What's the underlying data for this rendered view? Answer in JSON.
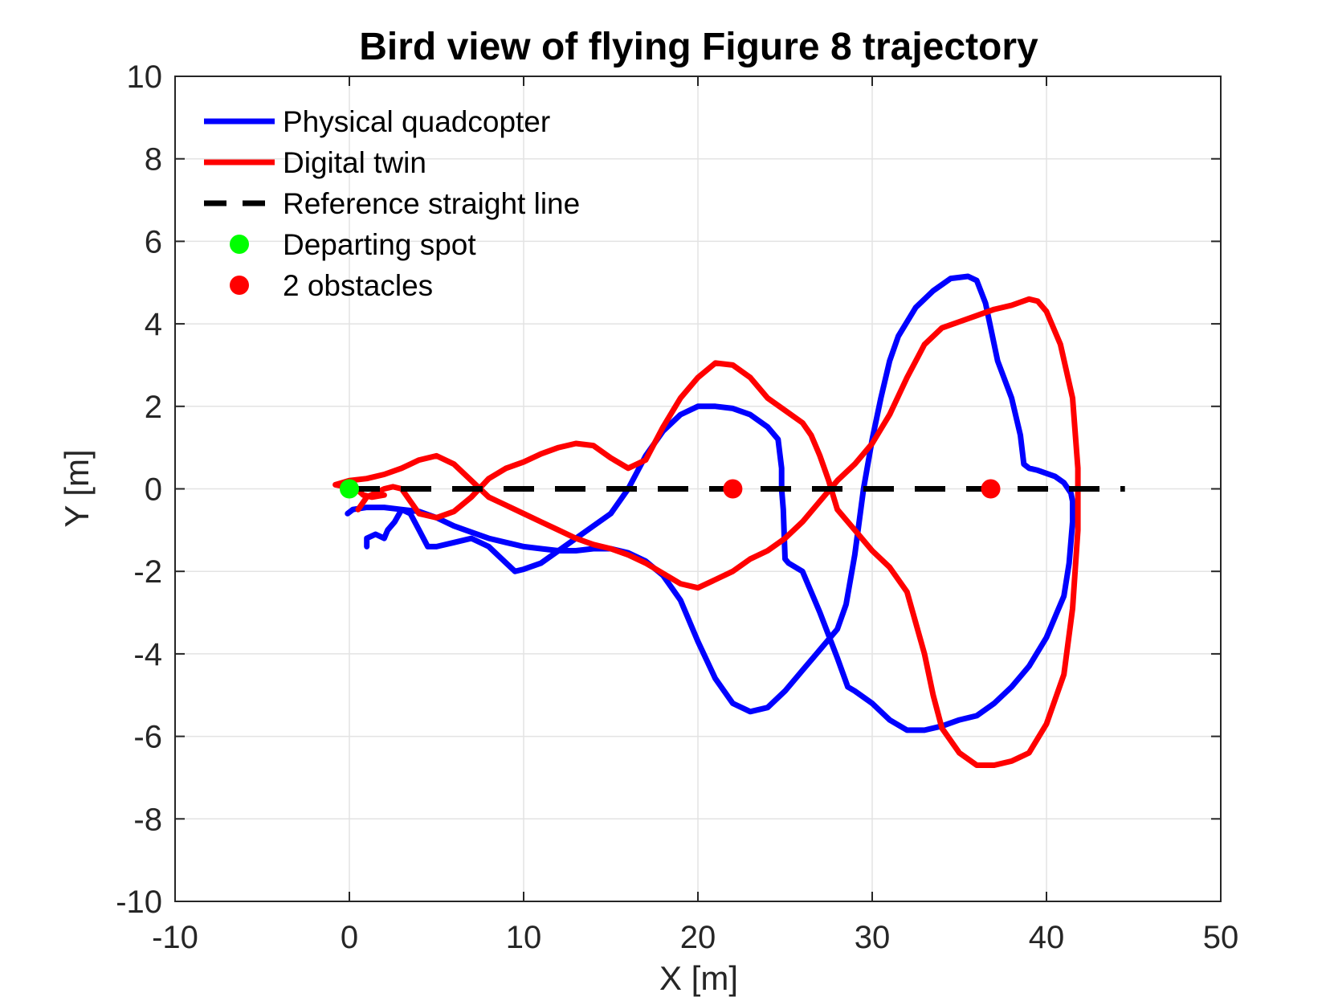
{
  "chart_data": {
    "type": "line",
    "title": "Bird view of flying Figure 8 trajectory",
    "xlabel": "X [m]",
    "ylabel": "Y [m]",
    "xlim": [
      -10,
      50
    ],
    "ylim": [
      -10,
      10
    ],
    "xticks": [
      -10,
      0,
      10,
      20,
      30,
      40,
      50
    ],
    "yticks": [
      -10,
      -8,
      -6,
      -4,
      -2,
      0,
      2,
      4,
      6,
      8,
      10
    ],
    "xtick_labels": [
      "-10",
      "0",
      "10",
      "20",
      "30",
      "40",
      "50"
    ],
    "ytick_labels": [
      "-10",
      "-8",
      "-6",
      "-4",
      "-2",
      "0",
      "2",
      "4",
      "6",
      "8",
      "10"
    ],
    "grid": true,
    "legend_position": "top-left",
    "series": [
      {
        "name": "Physical quadcopter",
        "color": "#0000ff",
        "style": "solid",
        "points": [
          [
            -0.1,
            -0.6
          ],
          [
            0.2,
            -0.5
          ],
          [
            1,
            -0.45
          ],
          [
            2,
            -0.45
          ],
          [
            3,
            -0.5
          ],
          [
            4,
            -0.55
          ],
          [
            5,
            -0.7
          ],
          [
            6,
            -0.9
          ],
          [
            7,
            -1.05
          ],
          [
            8,
            -1.2
          ],
          [
            9,
            -1.3
          ],
          [
            10,
            -1.4
          ],
          [
            11,
            -1.45
          ],
          [
            12,
            -1.5
          ],
          [
            13,
            -1.5
          ],
          [
            14,
            -1.45
          ],
          [
            15,
            -1.45
          ],
          [
            16,
            -1.55
          ],
          [
            17,
            -1.75
          ],
          [
            18,
            -2.1
          ],
          [
            19,
            -2.7
          ],
          [
            20,
            -3.7
          ],
          [
            21,
            -4.6
          ],
          [
            22,
            -5.2
          ],
          [
            23,
            -5.4
          ],
          [
            24,
            -5.3
          ],
          [
            25,
            -4.9
          ],
          [
            26,
            -4.4
          ],
          [
            27,
            -3.9
          ],
          [
            28,
            -3.4
          ],
          [
            28.5,
            -2.8
          ],
          [
            29,
            -1.6
          ],
          [
            29.5,
            0.0
          ],
          [
            30,
            1.2
          ],
          [
            30.5,
            2.2
          ],
          [
            31,
            3.1
          ],
          [
            31.5,
            3.7
          ],
          [
            32.5,
            4.4
          ],
          [
            33.5,
            4.8
          ],
          [
            34.5,
            5.1
          ],
          [
            35.5,
            5.15
          ],
          [
            36,
            5.05
          ],
          [
            36.5,
            4.5
          ],
          [
            37.2,
            3.1
          ],
          [
            38,
            2.2
          ],
          [
            38.5,
            1.3
          ],
          [
            38.7,
            0.6
          ],
          [
            39,
            0.5
          ],
          [
            39.5,
            0.45
          ],
          [
            40.5,
            0.3
          ],
          [
            41,
            0.15
          ],
          [
            41.4,
            -0.1
          ],
          [
            41.5,
            -0.3
          ],
          [
            41.5,
            -0.8
          ],
          [
            41.3,
            -1.8
          ],
          [
            41,
            -2.6
          ],
          [
            40.5,
            -3.1
          ],
          [
            40,
            -3.6
          ],
          [
            39,
            -4.3
          ],
          [
            38,
            -4.8
          ],
          [
            37,
            -5.2
          ],
          [
            36,
            -5.5
          ],
          [
            35,
            -5.6
          ],
          [
            34,
            -5.75
          ],
          [
            33,
            -5.85
          ],
          [
            32,
            -5.85
          ],
          [
            31,
            -5.6
          ],
          [
            30,
            -5.2
          ],
          [
            29,
            -4.9
          ],
          [
            28.6,
            -4.8
          ],
          [
            28,
            -4.1
          ],
          [
            27,
            -3.0
          ],
          [
            26,
            -2.0
          ],
          [
            25.2,
            -1.8
          ],
          [
            25,
            -1.7
          ],
          [
            24.9,
            -0.5
          ],
          [
            24.8,
            0.0
          ],
          [
            24.8,
            0.5
          ],
          [
            24.6,
            1.2
          ],
          [
            24,
            1.5
          ],
          [
            23,
            1.8
          ],
          [
            22,
            1.95
          ],
          [
            21,
            2.0
          ],
          [
            20,
            2.0
          ],
          [
            19,
            1.8
          ],
          [
            18,
            1.4
          ],
          [
            17,
            0.8
          ],
          [
            16,
            0.0
          ],
          [
            15.5,
            -0.3
          ],
          [
            15,
            -0.6
          ],
          [
            14,
            -0.9
          ],
          [
            13,
            -1.2
          ],
          [
            12,
            -1.5
          ],
          [
            11,
            -1.8
          ],
          [
            10,
            -1.95
          ],
          [
            9.5,
            -2.0
          ],
          [
            9,
            -1.8
          ],
          [
            8,
            -1.4
          ],
          [
            7,
            -1.2
          ],
          [
            6,
            -1.3
          ],
          [
            5,
            -1.4
          ],
          [
            4.5,
            -1.4
          ],
          [
            4,
            -1.0
          ],
          [
            3.5,
            -0.6
          ],
          [
            3,
            -0.5
          ],
          [
            2.6,
            -0.8
          ],
          [
            2.2,
            -1.0
          ],
          [
            2,
            -1.2
          ],
          [
            1.5,
            -1.1
          ],
          [
            1,
            -1.2
          ],
          [
            1,
            -1.4
          ]
        ]
      },
      {
        "name": "Digital twin",
        "color": "#ff0000",
        "style": "solid",
        "points": [
          [
            2,
            -0.15
          ],
          [
            1.3,
            -0.2
          ],
          [
            0.8,
            -0.15
          ],
          [
            0.4,
            0.0
          ],
          [
            -0.8,
            0.1
          ],
          [
            0,
            0.2
          ],
          [
            1,
            0.25
          ],
          [
            2,
            0.35
          ],
          [
            3,
            0.5
          ],
          [
            4,
            0.7
          ],
          [
            5,
            0.8
          ],
          [
            6,
            0.6
          ],
          [
            7,
            0.2
          ],
          [
            8,
            -0.2
          ],
          [
            9,
            -0.4
          ],
          [
            10,
            -0.6
          ],
          [
            11,
            -0.8
          ],
          [
            12,
            -1.0
          ],
          [
            13,
            -1.2
          ],
          [
            14,
            -1.35
          ],
          [
            15,
            -1.45
          ],
          [
            16,
            -1.6
          ],
          [
            17,
            -1.8
          ],
          [
            18,
            -2.05
          ],
          [
            19,
            -2.3
          ],
          [
            20,
            -2.4
          ],
          [
            21,
            -2.2
          ],
          [
            22,
            -2.0
          ],
          [
            23,
            -1.7
          ],
          [
            24,
            -1.5
          ],
          [
            25,
            -1.2
          ],
          [
            26,
            -0.8
          ],
          [
            27,
            -0.3
          ],
          [
            28,
            0.2
          ],
          [
            29,
            0.6
          ],
          [
            30,
            1.1
          ],
          [
            31,
            1.8
          ],
          [
            32,
            2.7
          ],
          [
            33,
            3.5
          ],
          [
            34,
            3.9
          ],
          [
            35,
            4.05
          ],
          [
            36,
            4.2
          ],
          [
            37,
            4.35
          ],
          [
            38,
            4.45
          ],
          [
            39,
            4.6
          ],
          [
            39.5,
            4.55
          ],
          [
            40,
            4.3
          ],
          [
            40.8,
            3.5
          ],
          [
            41.5,
            2.2
          ],
          [
            41.8,
            0.5
          ],
          [
            41.8,
            -1.0
          ],
          [
            41.5,
            -2.9
          ],
          [
            41,
            -4.5
          ],
          [
            40,
            -5.7
          ],
          [
            39,
            -6.4
          ],
          [
            38,
            -6.6
          ],
          [
            37,
            -6.7
          ],
          [
            36,
            -6.7
          ],
          [
            35,
            -6.4
          ],
          [
            34,
            -5.8
          ],
          [
            33.5,
            -5.0
          ],
          [
            33,
            -4.0
          ],
          [
            32,
            -2.5
          ],
          [
            31,
            -1.9
          ],
          [
            30,
            -1.5
          ],
          [
            29,
            -1.0
          ],
          [
            28,
            -0.5
          ],
          [
            27.5,
            0.2
          ],
          [
            27,
            0.8
          ],
          [
            26.5,
            1.3
          ],
          [
            26,
            1.6
          ],
          [
            25,
            1.9
          ],
          [
            24,
            2.2
          ],
          [
            23,
            2.7
          ],
          [
            22,
            3.0
          ],
          [
            21,
            3.05
          ],
          [
            20,
            2.7
          ],
          [
            19,
            2.2
          ],
          [
            18,
            1.5
          ],
          [
            17,
            0.7
          ],
          [
            16,
            0.5
          ],
          [
            15,
            0.75
          ],
          [
            14,
            1.05
          ],
          [
            13,
            1.1
          ],
          [
            12,
            1.0
          ],
          [
            11,
            0.85
          ],
          [
            10,
            0.65
          ],
          [
            9,
            0.5
          ],
          [
            8,
            0.25
          ],
          [
            7,
            -0.2
          ],
          [
            6,
            -0.55
          ],
          [
            5,
            -0.7
          ],
          [
            4,
            -0.6
          ],
          [
            3.5,
            -0.3
          ],
          [
            3,
            0.0
          ],
          [
            2.5,
            0.05
          ],
          [
            2,
            0.0
          ],
          [
            1,
            -0.2
          ],
          [
            0.5,
            -0.5
          ]
        ]
      },
      {
        "name": "Reference straight line",
        "color": "#000000",
        "style": "dashed",
        "points": [
          [
            0,
            0
          ],
          [
            44.5,
            0
          ]
        ]
      },
      {
        "name": "Departing spot",
        "color": "#00ff00",
        "style": "marker",
        "points": [
          [
            0,
            0
          ]
        ]
      },
      {
        "name": "2 obstacles",
        "color": "#ff0000",
        "style": "marker",
        "points": [
          [
            22,
            0
          ],
          [
            36.8,
            0
          ]
        ]
      }
    ]
  }
}
